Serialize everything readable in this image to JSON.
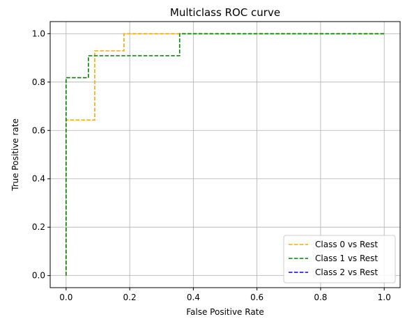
{
  "chart_data": {
    "type": "line",
    "title": "Multiclass ROC curve",
    "xlabel": "False Positive Rate",
    "ylabel": "True Positive rate",
    "xlim": [
      -0.05,
      1.05
    ],
    "ylim": [
      -0.05,
      1.05
    ],
    "xticks": [
      0.0,
      0.2,
      0.4,
      0.6,
      0.8,
      1.0
    ],
    "yticks": [
      0.0,
      0.2,
      0.4,
      0.6,
      0.8,
      1.0
    ],
    "xtick_labels": [
      "0.0",
      "0.2",
      "0.4",
      "0.6",
      "0.8",
      "1.0"
    ],
    "ytick_labels": [
      "0.0",
      "0.2",
      "0.4",
      "0.6",
      "0.8",
      "1.0"
    ],
    "grid": true,
    "legend_position": "lower-right",
    "series": [
      {
        "name": "Class 0 vs Rest",
        "color": "#ffa500",
        "dash": "dashed",
        "x": [
          0.0,
          0.0,
          0.0,
          0.09,
          0.09,
          0.182,
          0.182,
          1.0
        ],
        "y": [
          0.0,
          0.643,
          0.643,
          0.643,
          0.929,
          0.929,
          1.0,
          1.0
        ]
      },
      {
        "name": "Class 1 vs Rest",
        "color": "#008000",
        "dash": "dashed",
        "x": [
          0.0,
          0.0,
          0.07,
          0.07,
          0.357,
          0.357,
          1.0
        ],
        "y": [
          0.0,
          0.818,
          0.818,
          0.909,
          0.909,
          1.0,
          1.0
        ]
      },
      {
        "name": "Class 2 vs Rest",
        "color": "#0000ff",
        "dash": "dashed",
        "x": [],
        "y": []
      }
    ]
  }
}
